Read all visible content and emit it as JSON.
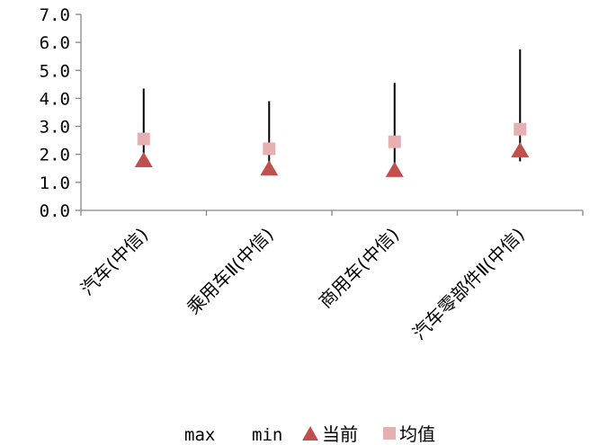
{
  "chart_data": {
    "type": "stock",
    "categories": [
      "汽车(中信)",
      "乘用车Ⅱ(中信)",
      "商用车(中信)",
      "汽车零部件Ⅱ(中信)"
    ],
    "series": [
      {
        "name": "max",
        "values": [
          4.35,
          3.9,
          4.55,
          5.75
        ]
      },
      {
        "name": "min",
        "values": [
          1.8,
          1.55,
          1.5,
          1.75
        ]
      },
      {
        "name": "当前",
        "values": [
          1.8,
          1.5,
          1.45,
          2.15
        ]
      },
      {
        "name": "均值",
        "values": [
          2.55,
          2.2,
          2.45,
          2.9
        ]
      }
    ],
    "ylim": [
      0,
      7
    ],
    "yticks": [
      "0.0",
      "1.0",
      "2.0",
      "3.0",
      "4.0",
      "5.0",
      "6.0",
      "7.0"
    ],
    "legend": {
      "position": "bottom",
      "labels": [
        "max",
        "min",
        "当前",
        "均值"
      ]
    },
    "colors": {
      "current": "#c0504d",
      "mean": "#e6b0b2",
      "line": "#000000",
      "axis": "#868686"
    }
  }
}
